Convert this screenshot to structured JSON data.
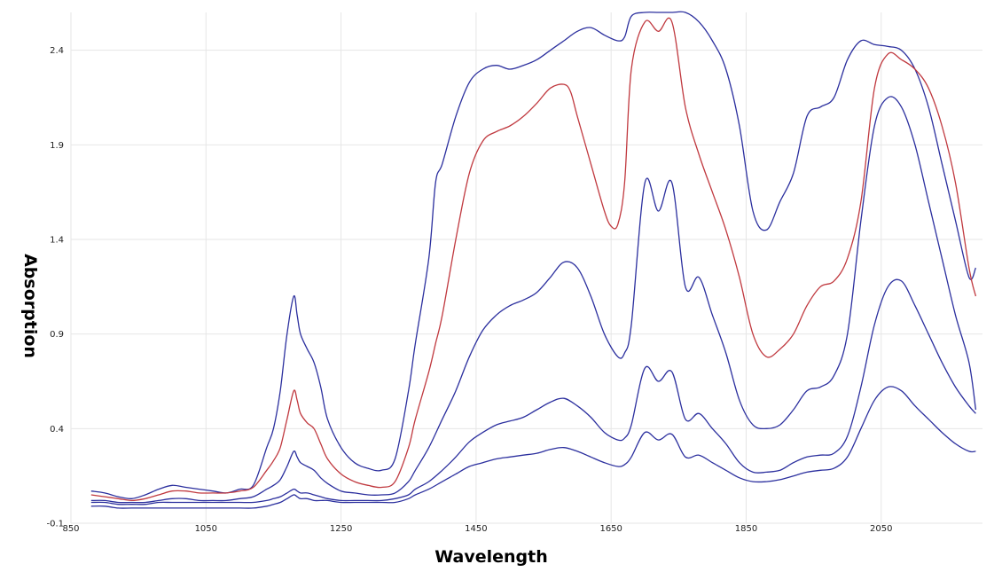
{
  "chart_data": {
    "type": "line",
    "title": "",
    "xlabel": "Wavelength",
    "ylabel": "Absorption",
    "xlim": [
      850,
      2200
    ],
    "ylim": [
      -0.1,
      2.6
    ],
    "x_ticks": [
      850,
      1050,
      1250,
      1450,
      1650,
      1850,
      2050
    ],
    "x_tick_labels": [
      "850",
      "1050",
      "1250",
      "1450",
      "1650",
      "1850",
      "2050"
    ],
    "y_ticks": [
      -0.1,
      0.4,
      0.9,
      1.4,
      1.9,
      2.4
    ],
    "y_tick_labels": [
      "-0.1",
      "0.4",
      "0.9",
      "1.4",
      "1.9",
      "2.4"
    ],
    "grid": true,
    "legend": "none",
    "series": [
      {
        "color": "#2b2f9e",
        "x": [
          880,
          900,
          920,
          940,
          960,
          980,
          1000,
          1020,
          1040,
          1060,
          1080,
          1100,
          1120,
          1140,
          1150,
          1160,
          1170,
          1180,
          1185,
          1190,
          1200,
          1210,
          1220,
          1230,
          1250,
          1270,
          1290,
          1310,
          1330,
          1350,
          1360,
          1380,
          1390,
          1400,
          1420,
          1440,
          1460,
          1480,
          1500,
          1520,
          1540,
          1560,
          1580,
          1600,
          1620,
          1640,
          1660,
          1670,
          1680,
          1700,
          1720,
          1740,
          1760,
          1780,
          1800,
          1820,
          1840,
          1860,
          1880,
          1900,
          1920,
          1940,
          1960,
          1980,
          2000,
          2020,
          2040,
          2060,
          2080,
          2100,
          2120,
          2140,
          2160,
          2180,
          2190
        ],
        "y": [
          0.07,
          0.06,
          0.04,
          0.03,
          0.05,
          0.08,
          0.1,
          0.09,
          0.08,
          0.07,
          0.06,
          0.08,
          0.1,
          0.3,
          0.4,
          0.6,
          0.9,
          1.1,
          1.0,
          0.9,
          0.82,
          0.75,
          0.62,
          0.45,
          0.3,
          0.22,
          0.19,
          0.18,
          0.24,
          0.6,
          0.85,
          1.3,
          1.7,
          1.8,
          2.05,
          2.23,
          2.3,
          2.32,
          2.3,
          2.32,
          2.35,
          2.4,
          2.45,
          2.5,
          2.52,
          2.48,
          2.45,
          2.47,
          2.58,
          2.6,
          2.6,
          2.6,
          2.6,
          2.55,
          2.45,
          2.3,
          2.0,
          1.55,
          1.45,
          1.6,
          1.75,
          2.05,
          2.1,
          2.15,
          2.35,
          2.45,
          2.43,
          2.42,
          2.4,
          2.3,
          2.1,
          1.8,
          1.5,
          1.2,
          1.25
        ]
      },
      {
        "color": "#c0393f",
        "x": [
          880,
          900,
          920,
          940,
          960,
          980,
          1000,
          1020,
          1040,
          1060,
          1080,
          1100,
          1120,
          1140,
          1150,
          1160,
          1170,
          1180,
          1185,
          1190,
          1200,
          1210,
          1220,
          1230,
          1250,
          1270,
          1290,
          1310,
          1330,
          1350,
          1360,
          1380,
          1390,
          1400,
          1420,
          1440,
          1460,
          1480,
          1500,
          1520,
          1540,
          1560,
          1580,
          1590,
          1600,
          1620,
          1640,
          1650,
          1660,
          1670,
          1680,
          1700,
          1720,
          1740,
          1760,
          1780,
          1800,
          1820,
          1840,
          1860,
          1880,
          1900,
          1920,
          1940,
          1960,
          1980,
          2000,
          2020,
          2040,
          2060,
          2080,
          2100,
          2120,
          2140,
          2160,
          2180,
          2190
        ],
        "y": [
          0.05,
          0.04,
          0.03,
          0.02,
          0.03,
          0.05,
          0.07,
          0.07,
          0.06,
          0.06,
          0.06,
          0.07,
          0.09,
          0.18,
          0.23,
          0.3,
          0.45,
          0.6,
          0.55,
          0.48,
          0.43,
          0.4,
          0.32,
          0.24,
          0.16,
          0.12,
          0.1,
          0.09,
          0.12,
          0.3,
          0.45,
          0.7,
          0.85,
          1.0,
          1.4,
          1.75,
          1.92,
          1.97,
          2.0,
          2.05,
          2.12,
          2.2,
          2.22,
          2.18,
          2.05,
          1.8,
          1.55,
          1.47,
          1.48,
          1.7,
          2.3,
          2.55,
          2.5,
          2.55,
          2.1,
          1.85,
          1.65,
          1.45,
          1.2,
          0.9,
          0.78,
          0.82,
          0.9,
          1.05,
          1.15,
          1.18,
          1.3,
          1.6,
          2.2,
          2.38,
          2.35,
          2.3,
          2.2,
          2.0,
          1.7,
          1.25,
          1.1
        ]
      },
      {
        "color": "#2b2f9e",
        "x": [
          880,
          900,
          920,
          940,
          960,
          980,
          1000,
          1020,
          1040,
          1060,
          1080,
          1100,
          1120,
          1140,
          1150,
          1160,
          1170,
          1180,
          1185,
          1190,
          1200,
          1210,
          1220,
          1230,
          1250,
          1270,
          1290,
          1310,
          1330,
          1350,
          1360,
          1380,
          1400,
          1420,
          1440,
          1460,
          1480,
          1500,
          1520,
          1540,
          1560,
          1580,
          1600,
          1620,
          1640,
          1660,
          1670,
          1680,
          1700,
          1720,
          1740,
          1760,
          1780,
          1800,
          1820,
          1840,
          1860,
          1880,
          1900,
          1920,
          1940,
          1960,
          1980,
          2000,
          2020,
          2040,
          2060,
          2080,
          2100,
          2120,
          2140,
          2160,
          2180,
          2190
        ],
        "y": [
          0.02,
          0.02,
          0.01,
          0.01,
          0.01,
          0.02,
          0.03,
          0.03,
          0.02,
          0.02,
          0.02,
          0.03,
          0.04,
          0.08,
          0.1,
          0.13,
          0.2,
          0.28,
          0.25,
          0.22,
          0.2,
          0.18,
          0.14,
          0.11,
          0.07,
          0.06,
          0.05,
          0.05,
          0.06,
          0.12,
          0.18,
          0.3,
          0.45,
          0.6,
          0.78,
          0.92,
          1.0,
          1.05,
          1.08,
          1.12,
          1.2,
          1.28,
          1.25,
          1.1,
          0.9,
          0.78,
          0.8,
          0.95,
          1.7,
          1.55,
          1.7,
          1.15,
          1.2,
          1.0,
          0.8,
          0.55,
          0.42,
          0.4,
          0.42,
          0.5,
          0.6,
          0.62,
          0.68,
          0.9,
          1.5,
          2.0,
          2.15,
          2.1,
          1.9,
          1.6,
          1.3,
          1.0,
          0.75,
          0.5
        ]
      },
      {
        "color": "#2b2f9e",
        "x": [
          880,
          900,
          920,
          940,
          960,
          980,
          1000,
          1020,
          1040,
          1060,
          1080,
          1100,
          1120,
          1140,
          1150,
          1160,
          1170,
          1180,
          1185,
          1190,
          1200,
          1210,
          1220,
          1230,
          1250,
          1270,
          1290,
          1310,
          1330,
          1350,
          1360,
          1380,
          1400,
          1420,
          1440,
          1460,
          1480,
          1500,
          1520,
          1540,
          1560,
          1580,
          1600,
          1620,
          1640,
          1660,
          1670,
          1680,
          1700,
          1720,
          1740,
          1760,
          1780,
          1800,
          1820,
          1840,
          1860,
          1880,
          1900,
          1920,
          1940,
          1960,
          1980,
          2000,
          2020,
          2040,
          2060,
          2080,
          2100,
          2120,
          2140,
          2160,
          2180,
          2190
        ],
        "y": [
          0.01,
          0.01,
          0.0,
          0.0,
          0.0,
          0.01,
          0.01,
          0.01,
          0.01,
          0.01,
          0.01,
          0.01,
          0.01,
          0.02,
          0.03,
          0.04,
          0.06,
          0.08,
          0.07,
          0.06,
          0.06,
          0.05,
          0.04,
          0.03,
          0.02,
          0.02,
          0.02,
          0.02,
          0.03,
          0.05,
          0.08,
          0.12,
          0.18,
          0.25,
          0.33,
          0.38,
          0.42,
          0.44,
          0.46,
          0.5,
          0.54,
          0.56,
          0.52,
          0.46,
          0.38,
          0.34,
          0.35,
          0.42,
          0.72,
          0.65,
          0.7,
          0.45,
          0.48,
          0.4,
          0.32,
          0.22,
          0.17,
          0.17,
          0.18,
          0.22,
          0.25,
          0.26,
          0.27,
          0.36,
          0.62,
          0.95,
          1.15,
          1.18,
          1.05,
          0.9,
          0.75,
          0.62,
          0.52,
          0.48
        ]
      },
      {
        "color": "#2b2f9e",
        "x": [
          880,
          900,
          920,
          940,
          960,
          980,
          1000,
          1020,
          1040,
          1060,
          1080,
          1100,
          1120,
          1140,
          1150,
          1160,
          1170,
          1180,
          1185,
          1190,
          1200,
          1210,
          1220,
          1230,
          1250,
          1270,
          1290,
          1310,
          1330,
          1350,
          1360,
          1380,
          1400,
          1420,
          1440,
          1460,
          1480,
          1500,
          1520,
          1540,
          1560,
          1580,
          1600,
          1620,
          1640,
          1660,
          1670,
          1680,
          1700,
          1720,
          1740,
          1760,
          1780,
          1800,
          1820,
          1840,
          1860,
          1880,
          1900,
          1920,
          1940,
          1960,
          1980,
          2000,
          2020,
          2040,
          2060,
          2080,
          2100,
          2120,
          2140,
          2160,
          2180,
          2190
        ],
        "y": [
          -0.01,
          -0.01,
          -0.02,
          -0.02,
          -0.02,
          -0.02,
          -0.02,
          -0.02,
          -0.02,
          -0.02,
          -0.02,
          -0.02,
          -0.02,
          -0.01,
          0.0,
          0.01,
          0.03,
          0.05,
          0.04,
          0.03,
          0.03,
          0.02,
          0.02,
          0.02,
          0.01,
          0.01,
          0.01,
          0.01,
          0.01,
          0.03,
          0.05,
          0.08,
          0.12,
          0.16,
          0.2,
          0.22,
          0.24,
          0.25,
          0.26,
          0.27,
          0.29,
          0.3,
          0.28,
          0.25,
          0.22,
          0.2,
          0.21,
          0.25,
          0.38,
          0.34,
          0.37,
          0.25,
          0.26,
          0.22,
          0.18,
          0.14,
          0.12,
          0.12,
          0.13,
          0.15,
          0.17,
          0.18,
          0.19,
          0.25,
          0.4,
          0.55,
          0.62,
          0.6,
          0.52,
          0.45,
          0.38,
          0.32,
          0.28,
          0.28
        ]
      }
    ]
  }
}
